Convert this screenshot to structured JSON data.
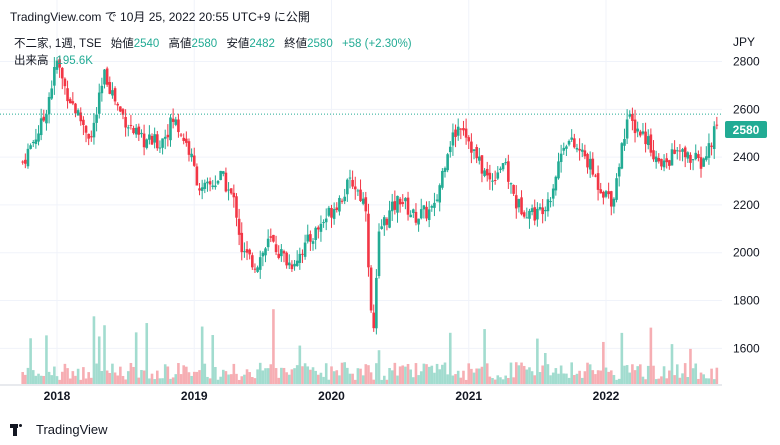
{
  "header": {
    "text": "TradingView.com で 10月 25, 2022 20:55 UTC+9 に公開"
  },
  "symbol": {
    "name": "不二家, 1週, TSE",
    "open_label": "始値",
    "open": "2540",
    "high_label": "高値",
    "high": "2580",
    "low_label": "安値",
    "low": "2482",
    "close_label": "終値",
    "close": "2580",
    "change": "+58 (+2.30%)"
  },
  "volume": {
    "label": "出来高",
    "value": "195.6K"
  },
  "currency": "JPY",
  "last_price_badge": "2580",
  "footer": {
    "brand": "TradingView"
  },
  "colors": {
    "up": "#22ab94",
    "down": "#f23645",
    "vol_up": "#a2dccf",
    "vol_down": "#f6aeb3",
    "grid": "#f0f3fa",
    "lastline": "#22ab94"
  },
  "chart_data": {
    "type": "candlestick",
    "y_ticks": [
      1600,
      1800,
      2000,
      2200,
      2400,
      2600,
      2800
    ],
    "x_ticks": [
      "2018",
      "2019",
      "2020",
      "2021",
      "2022"
    ],
    "ylim": [
      1455,
      2890
    ],
    "last_price": 2580,
    "series_anchor": [
      [
        2017.75,
        2380
      ],
      [
        2017.9,
        2550
      ],
      [
        2018.0,
        2800
      ],
      [
        2018.05,
        2700
      ],
      [
        2018.15,
        2580
      ],
      [
        2018.25,
        2480
      ],
      [
        2018.35,
        2750
      ],
      [
        2018.45,
        2600
      ],
      [
        2018.6,
        2470
      ],
      [
        2018.75,
        2460
      ],
      [
        2018.85,
        2560
      ],
      [
        2018.95,
        2450
      ],
      [
        2019.05,
        2250
      ],
      [
        2019.2,
        2320
      ],
      [
        2019.3,
        2200
      ],
      [
        2019.35,
        2000
      ],
      [
        2019.45,
        1950
      ],
      [
        2019.55,
        2050
      ],
      [
        2019.7,
        1950
      ],
      [
        2019.85,
        2060
      ],
      [
        2020.0,
        2180
      ],
      [
        2020.15,
        2300
      ],
      [
        2020.25,
        2200
      ],
      [
        2020.3,
        1600
      ],
      [
        2020.35,
        2100
      ],
      [
        2020.5,
        2230
      ],
      [
        2020.6,
        2150
      ],
      [
        2020.75,
        2180
      ],
      [
        2020.85,
        2450
      ],
      [
        2020.95,
        2550
      ],
      [
        2021.05,
        2400
      ],
      [
        2021.15,
        2300
      ],
      [
        2021.25,
        2380
      ],
      [
        2021.35,
        2200
      ],
      [
        2021.5,
        2160
      ],
      [
        2021.6,
        2250
      ],
      [
        2021.7,
        2480
      ],
      [
        2021.85,
        2400
      ],
      [
        2021.95,
        2280
      ],
      [
        2022.05,
        2220
      ],
      [
        2022.15,
        2560
      ],
      [
        2022.3,
        2480
      ],
      [
        2022.4,
        2350
      ],
      [
        2022.5,
        2420
      ],
      [
        2022.6,
        2400
      ],
      [
        2022.7,
        2370
      ],
      [
        2022.78,
        2480
      ],
      [
        2022.82,
        2580
      ]
    ]
  }
}
